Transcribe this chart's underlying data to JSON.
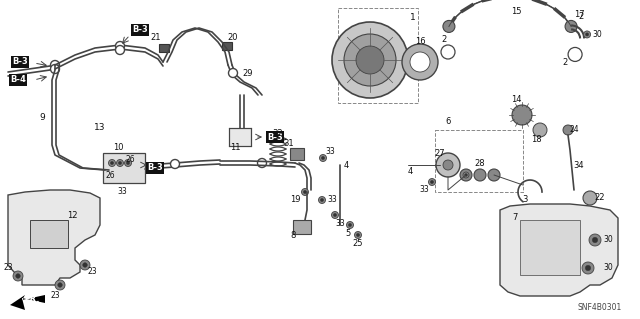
{
  "background_color": "#ffffff",
  "diagram_code": "SNF4B0301",
  "line_color": "#444444",
  "label_color": "#111111",
  "fig_width": 6.4,
  "fig_height": 3.19,
  "dpi": 100
}
